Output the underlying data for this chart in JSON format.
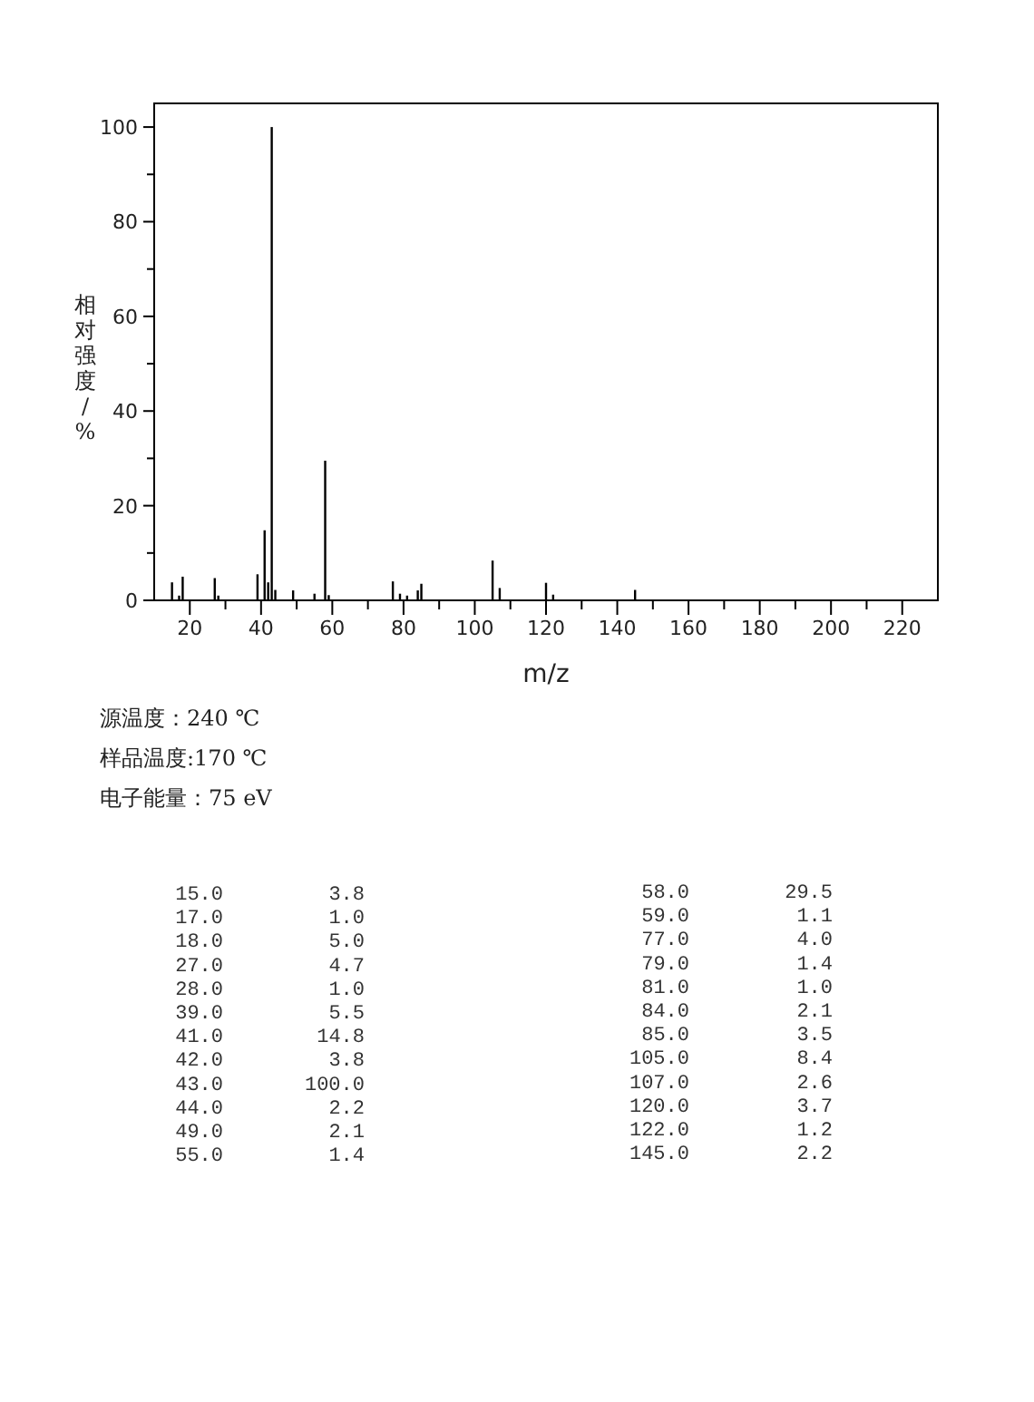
{
  "chart_data": [
    {
      "type": "bar",
      "xlabel": "m/z",
      "ylabel": "相对强度/%",
      "x": [
        15,
        17,
        18,
        27,
        28,
        39,
        41,
        42,
        43,
        44,
        49,
        55,
        58,
        59,
        77,
        79,
        81,
        84,
        85,
        105,
        107,
        120,
        122,
        145
      ],
      "values": [
        3.8,
        1.0,
        5.0,
        4.7,
        1.0,
        5.5,
        14.8,
        3.8,
        100.0,
        2.2,
        2.1,
        1.4,
        29.5,
        1.1,
        4.0,
        1.4,
        1.0,
        2.1,
        3.5,
        8.4,
        2.6,
        3.7,
        1.2,
        2.2
      ],
      "color": "#000000",
      "xlim": [
        10,
        230
      ],
      "ylim": [
        0,
        105
      ],
      "xticks": [
        20,
        40,
        60,
        80,
        100,
        120,
        140,
        160,
        180,
        200,
        220,
        {
          "value": 30,
          "label": null
        },
        {
          "value": 50,
          "label": null
        },
        {
          "value": 70,
          "label": null
        },
        {
          "value": 90,
          "label": null
        },
        {
          "value": 110,
          "label": null
        },
        {
          "value": 130,
          "label": null
        },
        {
          "value": 150,
          "label": null
        },
        {
          "value": 170,
          "label": null
        },
        {
          "value": 190,
          "label": null
        },
        {
          "value": 210,
          "label": null
        }
      ],
      "yticks": [
        0,
        20,
        40,
        60,
        80,
        100,
        {
          "value": 10,
          "label": null
        },
        {
          "value": 30,
          "label": null
        },
        {
          "value": 50,
          "label": null
        },
        {
          "value": 70,
          "label": null
        },
        {
          "value": 90,
          "label": null
        }
      ],
      "annotations": [
        "源温度：240 ℃",
        "样品温度:170 ℃",
        "电子能量：75 eV"
      ]
    },
    {
      "type": "other",
      "annotations": [
        "15.0",
        "3.8",
        "17.0",
        "1.0",
        "18.0",
        "5.0",
        "27.0",
        "4.7",
        "28.0",
        "1.0",
        "39.0",
        "5.5",
        "41.0",
        "14.8",
        "42.0",
        "3.8",
        "43.0",
        "100.0",
        "44.0",
        "2.2",
        "49.0",
        "2.1",
        "55.0",
        "1.4",
        "58.0",
        "29.5",
        "59.0",
        "1.1",
        "77.0",
        "4.0",
        "79.0",
        "1.4",
        "81.0",
        "1.0",
        "84.0",
        "2.1",
        "85.0",
        "3.5",
        "105.0",
        "8.4",
        "107.0",
        "2.6",
        "120.0",
        "3.7",
        "122.0",
        "1.2",
        "145.0",
        "2.2"
      ]
    }
  ]
}
